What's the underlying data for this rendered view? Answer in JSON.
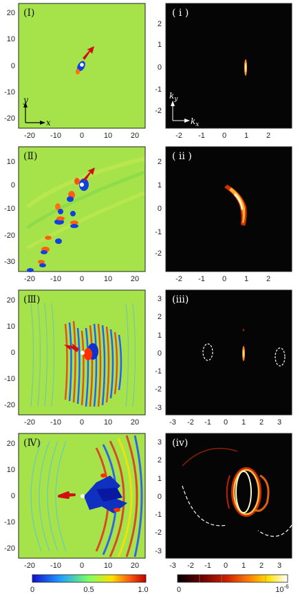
{
  "panels_left": [
    {
      "label": "(Ⅰ)",
      "xticks": [
        "-20",
        "-10",
        "0",
        "10",
        "20"
      ],
      "yticks": [
        "20",
        "10",
        "0",
        "-10",
        "-20"
      ],
      "axis_x": "x",
      "axis_y": "y"
    },
    {
      "label": "(Ⅱ)",
      "xticks": [
        "-20",
        "-10",
        "0",
        "10",
        "20"
      ],
      "yticks": [
        "10",
        "0",
        "-10",
        "-20",
        "-30"
      ]
    },
    {
      "label": "(Ⅲ)",
      "xticks": [
        "-20",
        "-10",
        "0",
        "10",
        "20"
      ],
      "yticks": [
        "20",
        "10",
        "0",
        "-10",
        "-20"
      ]
    },
    {
      "label": "(Ⅳ)",
      "xticks": [
        "-20",
        "-10",
        "0",
        "10",
        "20"
      ],
      "yticks": [
        "20",
        "10",
        "0",
        "-10",
        "-20"
      ]
    }
  ],
  "panels_right": [
    {
      "label": "( i )",
      "xticks": [
        "-2",
        "-1",
        "0",
        "1",
        "2"
      ],
      "yticks": [
        "2",
        "1",
        "0",
        "-1",
        "-2"
      ],
      "axis_x": "k",
      "axis_x_sub": "x",
      "axis_y": "k",
      "axis_y_sub": "y"
    },
    {
      "label": "( ii )",
      "xticks": [
        "-2",
        "-1",
        "0",
        "1",
        "2"
      ],
      "yticks": [
        "2",
        "1",
        "0",
        "-1",
        "-2"
      ]
    },
    {
      "label": "(iii)",
      "xticks": [
        "-3",
        "-2",
        "-1",
        "0",
        "1",
        "2",
        "3"
      ],
      "yticks": [
        "3",
        "2",
        "1",
        "0",
        "-1",
        "-2",
        "-3"
      ]
    },
    {
      "label": "(iv)",
      "xticks": [
        "-3",
        "-2",
        "-1",
        "0",
        "1",
        "2",
        "3"
      ],
      "yticks": [
        "3",
        "2",
        "1",
        "0",
        "-1",
        "-2",
        "-3"
      ]
    }
  ],
  "colorbar_left": {
    "ticks": [
      "0",
      "0.5",
      "1.0"
    ],
    "colors": [
      "#1010d0",
      "#20a0ff",
      "#80ff60",
      "#ffe000",
      "#ff6010",
      "#c00000"
    ]
  },
  "colorbar_right": {
    "ticks": [
      "0",
      "10"
    ],
    "exponent": "-6",
    "colors": [
      "#000000",
      "#600000",
      "#d02000",
      "#ff8000",
      "#ffe000",
      "#ffffff"
    ]
  },
  "colors": {
    "field_bg": "#a6e34a",
    "arrow": "#d01010",
    "spectrum_bg": "#050505"
  }
}
